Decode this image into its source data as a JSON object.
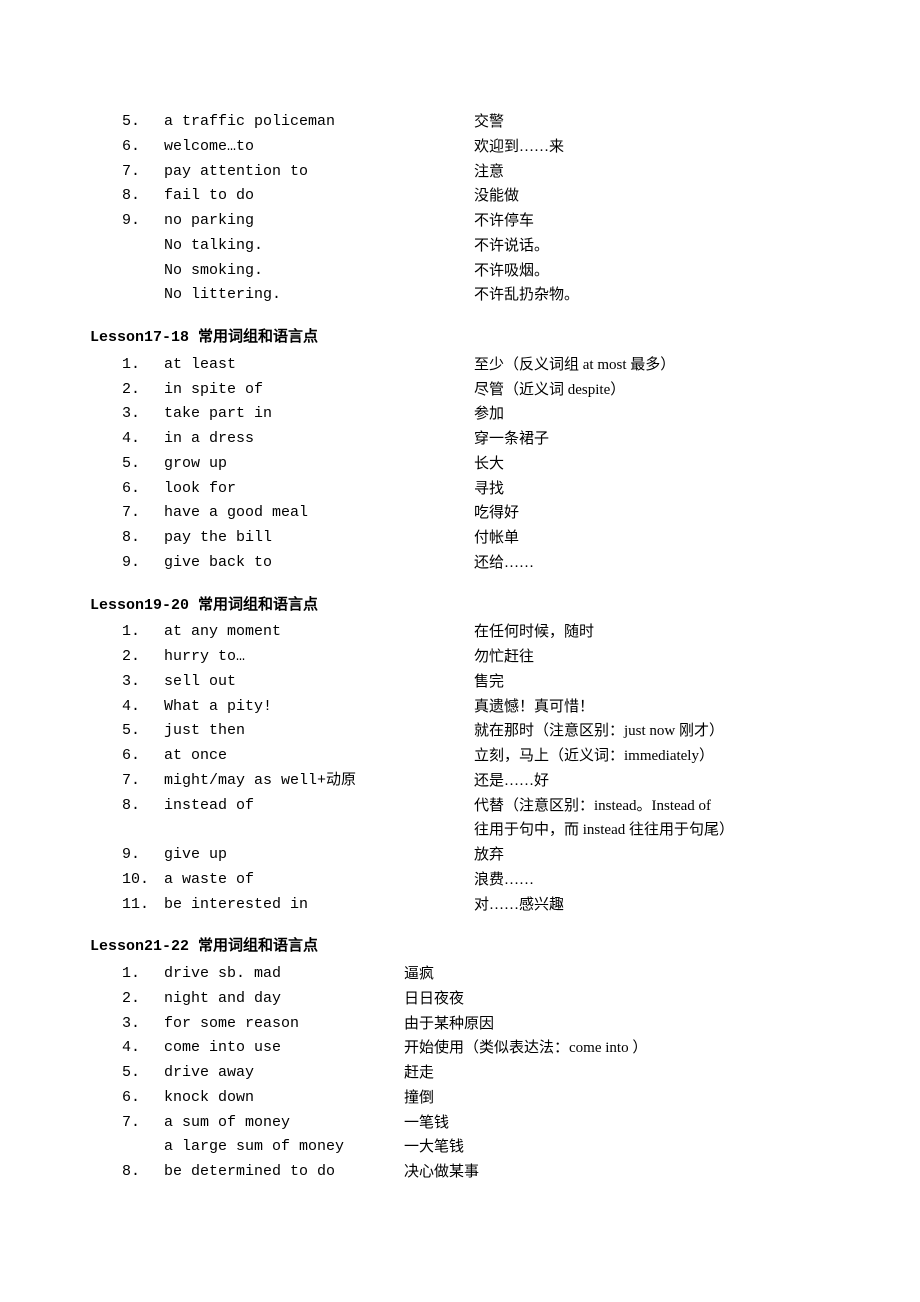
{
  "top_continuation": [
    {
      "idx": "5.",
      "eng": "a traffic policeman",
      "chn": "交警"
    },
    {
      "idx": "6.",
      "eng": "welcome…to",
      "chn": "欢迎到……来"
    },
    {
      "idx": "7.",
      "eng": "pay attention to",
      "chn": "注意"
    },
    {
      "idx": "8.",
      "eng": "fail to do",
      "chn": "没能做"
    },
    {
      "idx": "9.",
      "eng": "no parking",
      "chn": "不许停车"
    },
    {
      "idx": "",
      "eng": "No talking.",
      "chn": "不许说话。"
    },
    {
      "idx": "",
      "eng": "No smoking.",
      "chn": "不许吸烟。"
    },
    {
      "idx": "",
      "eng": "No littering.",
      "chn": "不许乱扔杂物。"
    }
  ],
  "lesson17_18": {
    "title": "Lesson17-18 常用词组和语言点",
    "items": [
      {
        "idx": "1.",
        "eng": "at least",
        "chn": "至少（反义词组 at most 最多）"
      },
      {
        "idx": "2.",
        "eng": "in spite of",
        "chn": "尽管（近义词 despite）"
      },
      {
        "idx": "3.",
        "eng": "take part in",
        "chn": "参加"
      },
      {
        "idx": "4.",
        "eng": "in a dress",
        "chn": "穿一条裙子"
      },
      {
        "idx": "5.",
        "eng": "grow up",
        "chn": "长大"
      },
      {
        "idx": "6.",
        "eng": "look for",
        "chn": "寻找"
      },
      {
        "idx": "7.",
        "eng": "have a good meal",
        "chn": "吃得好"
      },
      {
        "idx": "8.",
        "eng": "pay the bill",
        "chn": "付帐单"
      },
      {
        "idx": "9.",
        "eng": "give back to",
        "chn": "还给……"
      }
    ]
  },
  "lesson19_20": {
    "title": "Lesson19-20 常用词组和语言点",
    "items": [
      {
        "idx": "1.",
        "eng": "at any moment",
        "chn": "在任何时候，随时"
      },
      {
        "idx": "2.",
        "eng": "hurry to…",
        "chn": "勿忙赶往"
      },
      {
        "idx": "3.",
        "eng": "sell out",
        "chn": "售完"
      },
      {
        "idx": "4.",
        "eng": "What a pity!",
        "chn": "真遗憾！真可惜！"
      },
      {
        "idx": "5.",
        "eng": "just then",
        "chn": "就在那时（注意区别：just now 刚才）"
      },
      {
        "idx": "6.",
        "eng": "at once",
        "chn": "立刻，马上（近义词：immediately）"
      },
      {
        "idx": "7.",
        "eng": "might/may as well+动原",
        "chn": "还是……好"
      },
      {
        "idx": "8.",
        "eng": "instead of",
        "chn": "代替（注意区别：instead。Instead of"
      },
      {
        "idx": "",
        "eng": "",
        "chn": "往用于句中，而 instead 往往用于句尾）"
      },
      {
        "idx": "9.",
        "eng": "give up",
        "chn": "放弃"
      },
      {
        "idx": "10.",
        "eng": "a waste of",
        "chn": "浪费……"
      },
      {
        "idx": "11.",
        "eng": "be interested in",
        "chn": "对……感兴趣"
      }
    ]
  },
  "lesson21_22": {
    "title": "Lesson21-22 常用词组和语言点",
    "items": [
      {
        "idx": "1.",
        "eng": "drive sb. mad",
        "chn": "逼疯"
      },
      {
        "idx": "2.",
        "eng": "night and day",
        "chn": "日日夜夜"
      },
      {
        "idx": "3.",
        "eng": "for some reason",
        "chn": "由于某种原因"
      },
      {
        "idx": "4.",
        "eng": "come into use",
        "chn": "开始使用（类似表达法：come into ）"
      },
      {
        "idx": "5.",
        "eng": "drive away",
        "chn": "赶走"
      },
      {
        "idx": "6.",
        "eng": "knock down",
        "chn": "撞倒"
      },
      {
        "idx": "7.",
        "eng": "a sum of money",
        "chn": "一笔钱"
      },
      {
        "idx": "",
        "eng": "a large sum of money",
        "chn": "一大笔钱"
      },
      {
        "idx": "8.",
        "eng": "be determined to do",
        "chn": "决心做某事"
      }
    ]
  }
}
